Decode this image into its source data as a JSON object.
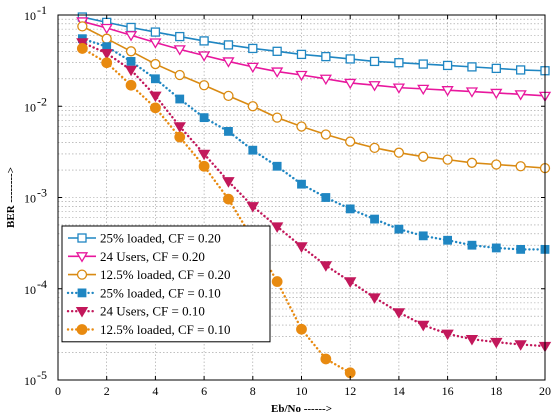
{
  "chart_data": {
    "type": "line",
    "xlabel": "Eb/No ------>",
    "ylabel": "BER -------->",
    "xlim": [
      0,
      20
    ],
    "ylim": [
      1e-05,
      0.1
    ],
    "yscale": "log",
    "grid": true,
    "legend_position": "bottom-left",
    "x_ticks": [
      "0",
      "2",
      "4",
      "6",
      "8",
      "10",
      "12",
      "14",
      "16",
      "18",
      "20"
    ],
    "y_ticks": [
      {
        "base": "10",
        "exp": "-1"
      },
      {
        "base": "10",
        "exp": "-2"
      },
      {
        "base": "10",
        "exp": "-3"
      },
      {
        "base": "10",
        "exp": "-4"
      },
      {
        "base": "10",
        "exp": "-5"
      }
    ],
    "series": [
      {
        "name": "25% loaded, CF = 0.20",
        "color": "#1f86c2",
        "line": "solid",
        "marker": "square-open",
        "x": [
          1,
          2,
          3,
          4,
          5,
          6,
          7,
          8,
          9,
          10,
          11,
          12,
          13,
          14,
          15,
          16,
          17,
          18,
          19,
          20
        ],
        "y": [
          0.095,
          0.083,
          0.073,
          0.065,
          0.058,
          0.052,
          0.047,
          0.043,
          0.04,
          0.037,
          0.035,
          0.033,
          0.031,
          0.03,
          0.029,
          0.028,
          0.027,
          0.026,
          0.025,
          0.0245
        ]
      },
      {
        "name": "24 Users, CF = 0.20",
        "color": "#e8179d",
        "line": "solid",
        "marker": "triangle-down-open",
        "x": [
          1,
          2,
          3,
          4,
          5,
          6,
          7,
          8,
          9,
          10,
          11,
          12,
          13,
          14,
          15,
          16,
          17,
          18,
          19,
          20
        ],
        "y": [
          0.085,
          0.072,
          0.06,
          0.05,
          0.042,
          0.036,
          0.031,
          0.027,
          0.024,
          0.022,
          0.02,
          0.018,
          0.017,
          0.016,
          0.0155,
          0.015,
          0.0145,
          0.014,
          0.0135,
          0.013
        ]
      },
      {
        "name": "12.5% loaded, CF = 0.20",
        "color": "#d98a12",
        "line": "solid",
        "marker": "circle-open",
        "x": [
          1,
          2,
          3,
          4,
          5,
          6,
          7,
          8,
          9,
          10,
          11,
          12,
          13,
          14,
          15,
          16,
          17,
          18,
          19,
          20
        ],
        "y": [
          0.075,
          0.055,
          0.04,
          0.029,
          0.022,
          0.017,
          0.013,
          0.01,
          0.0075,
          0.006,
          0.0049,
          0.0041,
          0.0035,
          0.0031,
          0.0028,
          0.0026,
          0.0024,
          0.0023,
          0.0022,
          0.0021
        ]
      },
      {
        "name": "25% loaded, CF = 0.10",
        "color": "#1f86c2",
        "line": "dotted",
        "marker": "square-filled",
        "x": [
          1,
          2,
          3,
          4,
          5,
          6,
          7,
          8,
          9,
          10,
          11,
          12,
          13,
          14,
          15,
          16,
          17,
          18,
          19,
          20
        ],
        "y": [
          0.055,
          0.045,
          0.031,
          0.02,
          0.012,
          0.0075,
          0.0053,
          0.0033,
          0.0022,
          0.0014,
          0.001,
          0.00075,
          0.00058,
          0.00045,
          0.00038,
          0.00034,
          0.0003,
          0.00028,
          0.00027,
          0.00027
        ]
      },
      {
        "name": "24 Users, CF = 0.10",
        "color": "#c2185b",
        "line": "dotted",
        "marker": "triangle-down-filled",
        "x": [
          1,
          2,
          3,
          4,
          5,
          6,
          7,
          8,
          9,
          10,
          11,
          12,
          13,
          14,
          15,
          16,
          17,
          18,
          19,
          20
        ],
        "y": [
          0.05,
          0.038,
          0.025,
          0.013,
          0.006,
          0.003,
          0.0015,
          0.0008,
          0.00048,
          0.00029,
          0.00018,
          0.00012,
          8e-05,
          5.5e-05,
          4e-05,
          3.2e-05,
          2.8e-05,
          2.6e-05,
          2.45e-05,
          2.35e-05
        ]
      },
      {
        "name": "12.5% loaded, CF = 0.10",
        "color": "#e88a10",
        "line": "dotted",
        "marker": "circle-filled",
        "x": [
          1,
          2,
          3,
          4,
          5,
          6,
          7,
          8,
          9,
          10,
          11,
          12
        ],
        "y": [
          0.043,
          0.03,
          0.017,
          0.0096,
          0.0046,
          0.0022,
          0.00096,
          0.00035,
          0.00012,
          3.6e-05,
          1.7e-05,
          1.2e-05
        ]
      }
    ]
  }
}
